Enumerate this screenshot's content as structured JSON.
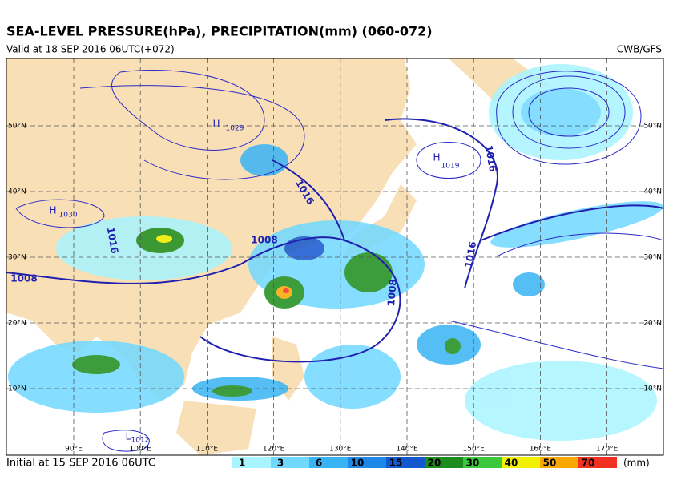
{
  "header": {
    "title": "SEA-LEVEL PRESSURE(hPa), PRECIPITATION(mm) (060-072)",
    "valid": "Valid at 18 SEP 2016 06UTC(+072)",
    "source": "CWB/GFS"
  },
  "footer": {
    "initial": "Initial at 15 SEP 2016 06UTC"
  },
  "map": {
    "latitudes": [
      "50°N",
      "40°N",
      "30°N",
      "20°N",
      "10°N"
    ],
    "longitudes": [
      "90°E",
      "100°E",
      "110°E",
      "120°E",
      "130°E",
      "140°E",
      "150°E",
      "160°E",
      "170°E"
    ],
    "isobar_labels": [
      "1029",
      "1019",
      "1030",
      "1016",
      "1016",
      "1016",
      "1016",
      "1008",
      "1008",
      "1008",
      "1012"
    ],
    "centers": [
      "H",
      "H",
      "H",
      "L"
    ]
  },
  "legend": {
    "levels": [
      1,
      3,
      6,
      10,
      15,
      20,
      30,
      40,
      50,
      70
    ],
    "colors": [
      "#a8f4ff",
      "#70d8ff",
      "#38b4f4",
      "#1e88e8",
      "#1458d0",
      "#1c8c1c",
      "#3cc83c",
      "#f0f000",
      "#f8a800",
      "#f03020"
    ],
    "unit": "(mm)"
  }
}
